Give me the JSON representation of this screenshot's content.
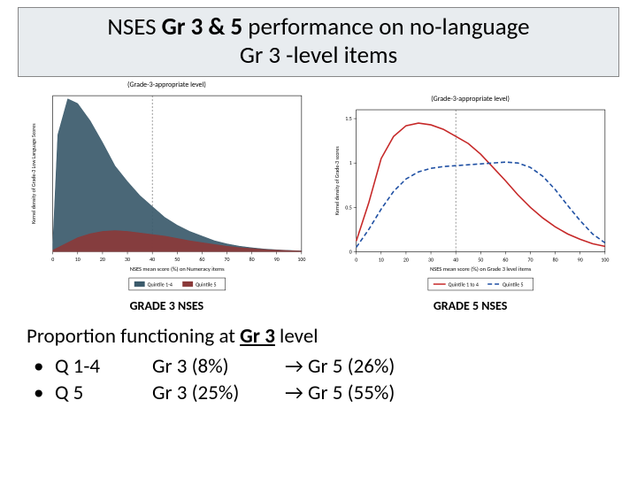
{
  "title": {
    "pre": "NSES ",
    "bold": "Gr 3 & 5",
    "mid": " performance on no-language ",
    "line2": "Gr 3 -level items"
  },
  "left_chart": {
    "type": "area",
    "subtitle": "(Grade-3-appropriate level)",
    "label": "GRADE 3 NSES",
    "ylabel": "Kernel density of Grade-3 Low Language Scores",
    "xlabel": "NSES mean score (%) on Numeracy items",
    "xlim": [
      0,
      100
    ],
    "xtick_step": 10,
    "ylim": [
      0,
      1.0
    ],
    "ref_x": 40,
    "background_color": "#ffffff",
    "series": [
      {
        "name": "Quintile 1-4",
        "fill": "#3b5a6b",
        "points": [
          [
            0,
            0.05
          ],
          [
            2,
            0.75
          ],
          [
            6,
            0.98
          ],
          [
            10,
            0.95
          ],
          [
            15,
            0.84
          ],
          [
            20,
            0.7
          ],
          [
            25,
            0.55
          ],
          [
            30,
            0.45
          ],
          [
            35,
            0.36
          ],
          [
            40,
            0.29
          ],
          [
            45,
            0.22
          ],
          [
            50,
            0.17
          ],
          [
            55,
            0.13
          ],
          [
            60,
            0.1
          ],
          [
            65,
            0.07
          ],
          [
            70,
            0.05
          ],
          [
            75,
            0.035
          ],
          [
            80,
            0.025
          ],
          [
            85,
            0.017
          ],
          [
            90,
            0.012
          ],
          [
            95,
            0.008
          ],
          [
            100,
            0.005
          ]
        ]
      },
      {
        "name": "Quintile 5",
        "fill": "#8a3a3a",
        "points": [
          [
            0,
            0.01
          ],
          [
            5,
            0.05
          ],
          [
            10,
            0.09
          ],
          [
            15,
            0.115
          ],
          [
            20,
            0.13
          ],
          [
            25,
            0.135
          ],
          [
            30,
            0.13
          ],
          [
            35,
            0.12
          ],
          [
            40,
            0.11
          ],
          [
            45,
            0.1
          ],
          [
            50,
            0.085
          ],
          [
            55,
            0.07
          ],
          [
            60,
            0.058
          ],
          [
            65,
            0.046
          ],
          [
            70,
            0.035
          ],
          [
            75,
            0.026
          ],
          [
            80,
            0.02
          ],
          [
            85,
            0.014
          ],
          [
            90,
            0.01
          ],
          [
            95,
            0.007
          ],
          [
            100,
            0.004
          ]
        ]
      }
    ],
    "legend": [
      {
        "label": "Quintile 1-4",
        "swatch": "#3b5a6b"
      },
      {
        "label": "Quintile 5",
        "swatch": "#8a3a3a"
      }
    ]
  },
  "right_chart": {
    "type": "line",
    "subtitle": "(Grade-3-appropriate level)",
    "label": "GRADE 5 NSES",
    "ylabel": "Kernel density of Grade-3 scores",
    "xlabel": "NSES mean score (%) on Grade 3 level items",
    "xlim": [
      0,
      100
    ],
    "xtick_step": 10,
    "ylim": [
      0,
      1.6
    ],
    "yticks": [
      0,
      0.5,
      1,
      1.5
    ],
    "ref_x": 40,
    "background_color": "#ffffff",
    "series": [
      {
        "name": "Quintile 1 to 4",
        "stroke": "#c62828",
        "dash": "none",
        "points": [
          [
            0,
            0.12
          ],
          [
            5,
            0.55
          ],
          [
            10,
            1.05
          ],
          [
            15,
            1.3
          ],
          [
            20,
            1.42
          ],
          [
            25,
            1.45
          ],
          [
            30,
            1.43
          ],
          [
            35,
            1.38
          ],
          [
            40,
            1.3
          ],
          [
            45,
            1.22
          ],
          [
            50,
            1.1
          ],
          [
            55,
            0.95
          ],
          [
            60,
            0.8
          ],
          [
            65,
            0.64
          ],
          [
            70,
            0.5
          ],
          [
            75,
            0.38
          ],
          [
            80,
            0.28
          ],
          [
            85,
            0.2
          ],
          [
            90,
            0.14
          ],
          [
            95,
            0.09
          ],
          [
            100,
            0.06
          ]
        ]
      },
      {
        "name": "Quintile 5",
        "stroke": "#1e4fa3",
        "dash": "5,3",
        "points": [
          [
            0,
            0.05
          ],
          [
            5,
            0.25
          ],
          [
            10,
            0.48
          ],
          [
            15,
            0.68
          ],
          [
            20,
            0.82
          ],
          [
            25,
            0.9
          ],
          [
            30,
            0.94
          ],
          [
            35,
            0.96
          ],
          [
            40,
            0.97
          ],
          [
            45,
            0.98
          ],
          [
            50,
            0.99
          ],
          [
            55,
            1.0
          ],
          [
            60,
            1.01
          ],
          [
            65,
            1.0
          ],
          [
            70,
            0.95
          ],
          [
            75,
            0.85
          ],
          [
            80,
            0.7
          ],
          [
            85,
            0.52
          ],
          [
            90,
            0.35
          ],
          [
            95,
            0.2
          ],
          [
            100,
            0.1
          ]
        ]
      }
    ],
    "legend": [
      {
        "label": "Quintile 1 to 4",
        "stroke": "#c62828",
        "dash": "none"
      },
      {
        "label": "Quintile 5",
        "stroke": "#1e4fa3",
        "dash": "5,3"
      }
    ]
  },
  "footer": {
    "line1_pre": "Proportion functioning at ",
    "line1_u": "Gr 3",
    "line1_post": " level",
    "rows": [
      {
        "q": "Q 1-4",
        "a": "Gr 3 (8%)",
        "b": "→ Gr 5 (26%)"
      },
      {
        "q": "Q 5",
        "a": "Gr 3 (25%)",
        "b": "→ Gr 5 (55%)"
      }
    ]
  }
}
